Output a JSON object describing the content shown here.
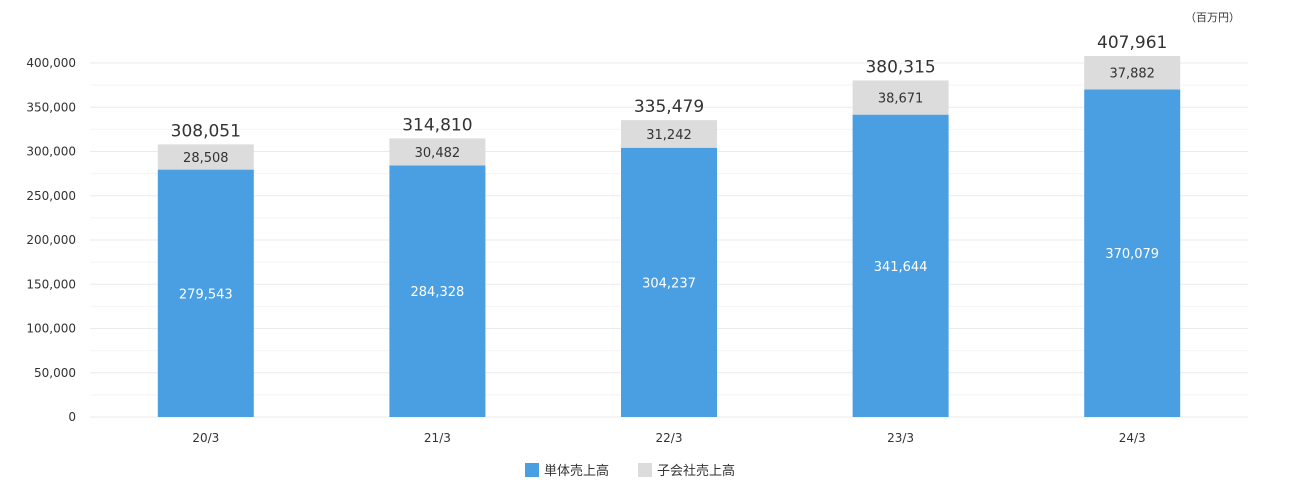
{
  "chart_data": {
    "type": "bar",
    "stacked": true,
    "unit": "（百万円）",
    "categories": [
      "20/3",
      "21/3",
      "22/3",
      "23/3",
      "24/3"
    ],
    "series": [
      {
        "name": "単体売上高",
        "values": [
          279543,
          284328,
          304237,
          341644,
          370079
        ],
        "color": "#4a9fe3"
      },
      {
        "name": "子会社売上高",
        "values": [
          28508,
          30482,
          31242,
          38671,
          37882
        ],
        "color": "#dcdcdc"
      }
    ],
    "totals": [
      308051,
      314810,
      335479,
      380315,
      407961
    ],
    "ylim": [
      0,
      400000
    ],
    "yticks": [
      0,
      50000,
      100000,
      150000,
      200000,
      250000,
      300000,
      350000,
      400000
    ],
    "grid": true,
    "legend_position": "bottom-center"
  }
}
